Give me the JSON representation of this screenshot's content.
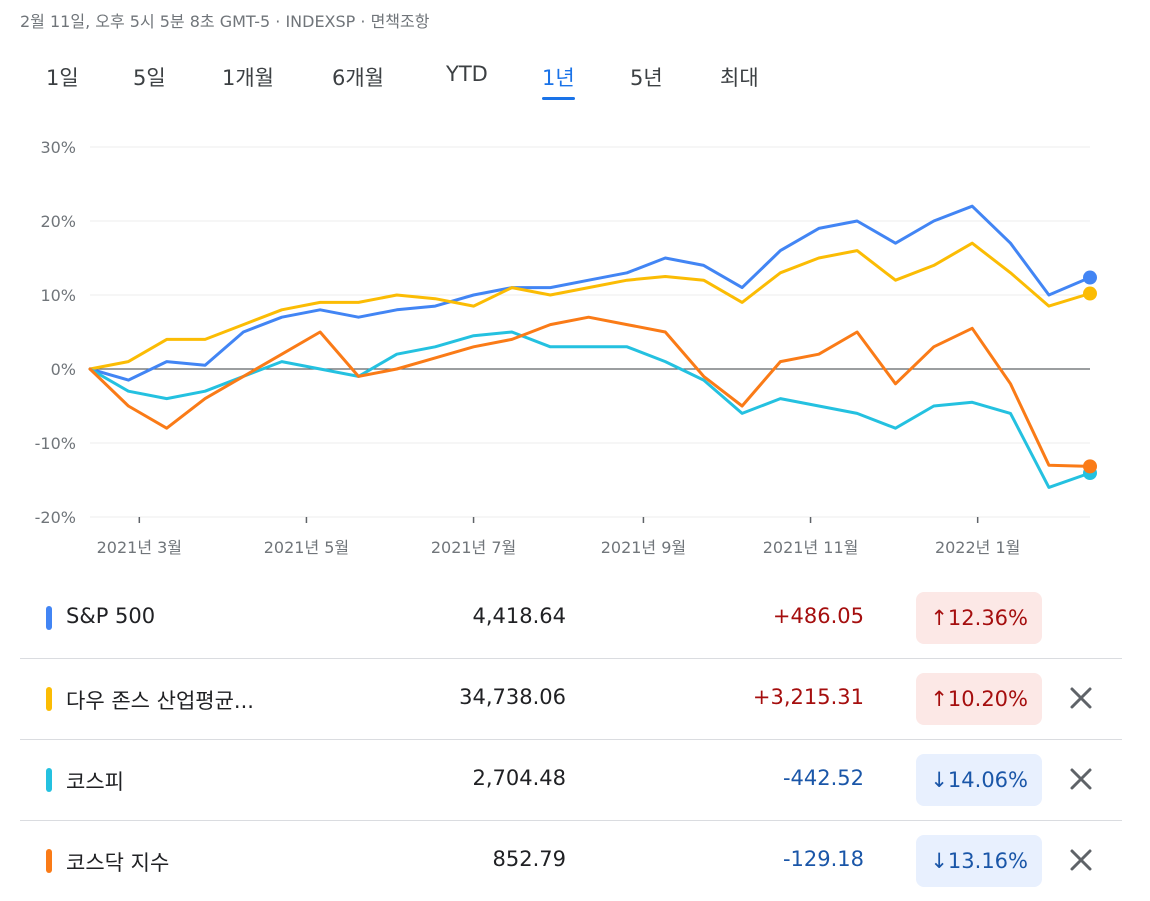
{
  "header": {
    "meta": "2월 11일, 오후 5시 5분 8초 GMT-5 · INDEXSP · 면책조항"
  },
  "tabs": [
    {
      "label": "1일"
    },
    {
      "label": "5일"
    },
    {
      "label": "1개월"
    },
    {
      "label": "6개월"
    },
    {
      "label": "YTD"
    },
    {
      "label": "1년"
    },
    {
      "label": "5년"
    },
    {
      "label": "최대"
    }
  ],
  "active_tab": "1년",
  "chart_data": {
    "type": "line",
    "x_tick_labels": [
      "2021년 3월",
      "2021년 5월",
      "2021년 7월",
      "2021년 9월",
      "2021년 11월",
      "2022년 1월"
    ],
    "y_ticks": [
      30,
      20,
      10,
      0,
      -10,
      -20
    ],
    "y_tick_labels": [
      "30%",
      "20%",
      "10%",
      "0%",
      "-10%",
      "-20%"
    ],
    "ylim": [
      -20,
      30
    ],
    "x": [
      "2021-02-11",
      "2021-02-25",
      "2021-03-11",
      "2021-03-25",
      "2021-04-08",
      "2021-04-22",
      "2021-05-06",
      "2021-05-20",
      "2021-06-03",
      "2021-06-17",
      "2021-07-01",
      "2021-07-15",
      "2021-07-29",
      "2021-08-12",
      "2021-08-26",
      "2021-09-09",
      "2021-09-23",
      "2021-10-07",
      "2021-10-21",
      "2021-11-04",
      "2021-11-18",
      "2021-12-02",
      "2021-12-16",
      "2021-12-30",
      "2022-01-13",
      "2022-01-27",
      "2022-02-11"
    ],
    "series": [
      {
        "name": "S&P 500",
        "color": "#4285f4",
        "values": [
          0,
          -1.5,
          1,
          0.5,
          5,
          7,
          8,
          7,
          8,
          8.5,
          10,
          11,
          11,
          12,
          13,
          15,
          14,
          11,
          16,
          19,
          20,
          17,
          20,
          22,
          17,
          10,
          12.36
        ]
      },
      {
        "name": "다우 존스 산업평균...",
        "color": "#fbbc04",
        "values": [
          0,
          1,
          4,
          4,
          6,
          8,
          9,
          9,
          10,
          9.5,
          8.5,
          11,
          10,
          11,
          12,
          12.5,
          12,
          9,
          13,
          15,
          16,
          12,
          14,
          17,
          13,
          8.5,
          10.2
        ]
      },
      {
        "name": "코스피",
        "color": "#24c1e0",
        "values": [
          0,
          -3,
          -4,
          -3,
          -1,
          1,
          0,
          -1,
          2,
          3,
          4.5,
          5,
          3,
          3,
          3,
          1,
          -1.5,
          -6,
          -4,
          -5,
          -6,
          -8,
          -5,
          -4.5,
          -6,
          -16,
          -14.06
        ]
      },
      {
        "name": "코스닥 지수",
        "color": "#fa7b17",
        "values": [
          0,
          -5,
          -8,
          -4,
          -1,
          2,
          5,
          -1,
          0,
          1.5,
          3,
          4,
          6,
          7,
          6,
          5,
          -1,
          -5,
          1,
          2,
          5,
          -2,
          3,
          5.5,
          -2,
          -13,
          -13.16
        ]
      }
    ]
  },
  "rows": [
    {
      "name": "S&P 500",
      "value": "4,418.64",
      "change": "+486.05",
      "pct": "↑12.36%",
      "dir": "up",
      "color": "#4285f4",
      "closable": false
    },
    {
      "name": "다우 존스 산업평균...",
      "value": "34,738.06",
      "change": "+3,215.31",
      "pct": "↑10.20%",
      "dir": "up",
      "color": "#fbbc04",
      "closable": true
    },
    {
      "name": "코스피",
      "value": "2,704.48",
      "change": "-442.52",
      "pct": "↓14.06%",
      "dir": "down",
      "color": "#24c1e0",
      "closable": true
    },
    {
      "name": "코스닥 지수",
      "value": "852.79",
      "change": "-129.18",
      "pct": "↓13.16%",
      "dir": "down",
      "color": "#fa7b17",
      "closable": true
    }
  ]
}
